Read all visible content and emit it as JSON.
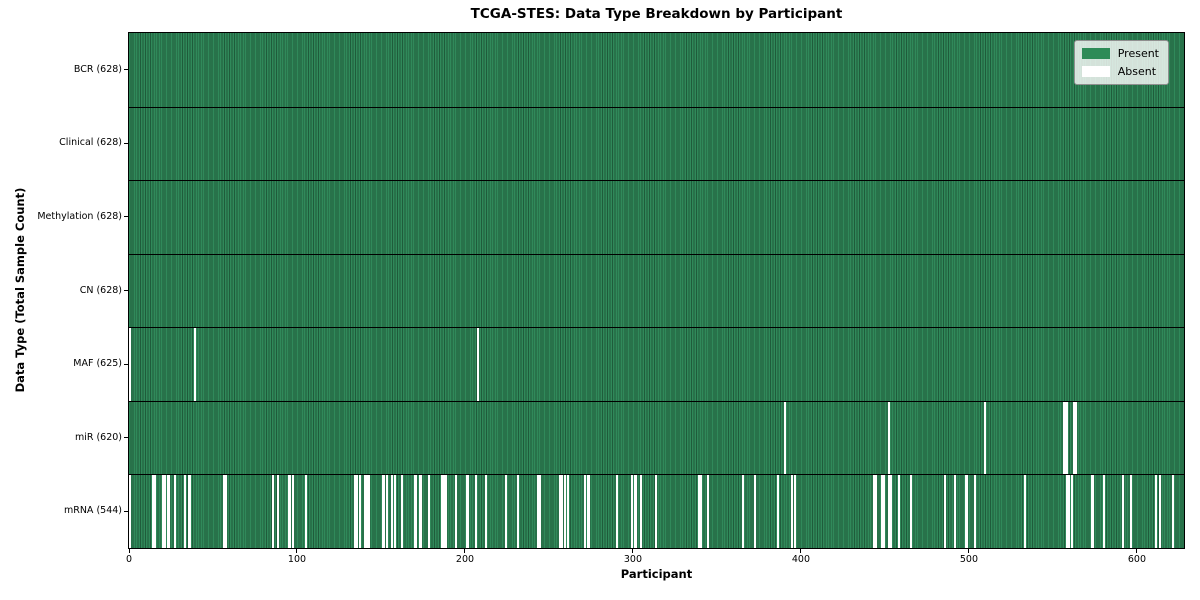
{
  "chart_data": {
    "type": "heatmap",
    "title": "TCGA-STES: Data Type Breakdown by Participant",
    "xlabel": "Participant",
    "ylabel": "Data Type (Total Sample Count)",
    "legend_labels": [
      "Present",
      "Absent"
    ],
    "legend_position": "upper right",
    "colors": {
      "present": "#2E8B57",
      "present_edge": "#1f5c3b",
      "absent": "#FFFFFF",
      "row_divider": "#000000",
      "legend_background": "#eff1ee"
    },
    "n_participants": 628,
    "x_ticks": [
      0,
      100,
      200,
      300,
      400,
      500,
      600
    ],
    "grid": false,
    "rows": [
      {
        "label": "BCR (628)",
        "data_type": "BCR",
        "present_count": 628,
        "absent_participants": []
      },
      {
        "label": "Clinical (628)",
        "data_type": "Clinical",
        "present_count": 628,
        "absent_participants": []
      },
      {
        "label": "Methylation (628)",
        "data_type": "Methylation",
        "present_count": 628,
        "absent_participants": []
      },
      {
        "label": "CN (628)",
        "data_type": "CN",
        "present_count": 628,
        "absent_participants": []
      },
      {
        "label": "MAF (625)",
        "data_type": "MAF",
        "present_count": 625,
        "absent_participants": [
          0,
          39,
          207
        ]
      },
      {
        "label": "miR (620)",
        "data_type": "miR",
        "present_count": 620,
        "absent_participants": [
          390,
          452,
          509,
          556,
          557,
          558,
          562,
          563
        ]
      },
      {
        "label": "mRNA (544)",
        "data_type": "mRNA",
        "present_count": 544,
        "absent_participants": [
          0,
          14,
          15,
          20,
          21,
          23,
          27,
          33,
          35,
          36,
          56,
          57,
          85,
          88,
          95,
          97,
          105,
          134,
          135,
          137,
          140,
          141,
          142,
          151,
          153,
          156,
          158,
          162,
          170,
          173,
          178,
          186,
          187,
          188,
          194,
          201,
          206,
          212,
          224,
          231,
          243,
          244,
          256,
          257,
          259,
          261,
          271,
          273,
          290,
          299,
          301,
          304,
          313,
          339,
          340,
          344,
          365,
          372,
          386,
          394,
          396,
          443,
          444,
          448,
          449,
          452,
          453,
          458,
          465,
          485,
          491,
          498,
          503,
          533,
          558,
          559,
          561,
          573,
          580,
          591,
          596,
          611,
          613,
          621
        ]
      }
    ]
  }
}
